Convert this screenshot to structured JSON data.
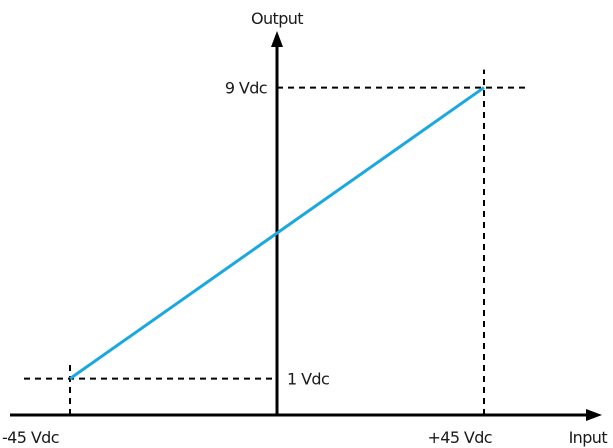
{
  "chart_data": {
    "type": "line",
    "title": "",
    "xlabel": "Input",
    "ylabel": "Output",
    "x_ticks": [
      "-45 Vdc",
      "+45 Vdc"
    ],
    "y_ticks": [
      "1 Vdc",
      "9 Vdc"
    ],
    "xlim": [
      -55,
      55
    ],
    "ylim": [
      0,
      10.5
    ],
    "series": [
      {
        "color": "#1ba7e0",
        "points": [
          {
            "x": -45,
            "y": 1
          },
          {
            "x": 45,
            "y": 9
          }
        ]
      }
    ],
    "guides": [
      {
        "from": {
          "x": -55,
          "y": 1
        },
        "to": {
          "x": 0,
          "y": 1
        }
      },
      {
        "from": {
          "x": 0,
          "y": 9
        },
        "to": {
          "x": 55,
          "y": 9
        }
      },
      {
        "from": {
          "x": -45,
          "y": 0
        },
        "to": {
          "x": -45,
          "y": 1
        }
      },
      {
        "from": {
          "x": 45,
          "y": 0
        },
        "to": {
          "x": 45,
          "y": 9
        }
      }
    ],
    "grid": false,
    "legend": "none"
  }
}
